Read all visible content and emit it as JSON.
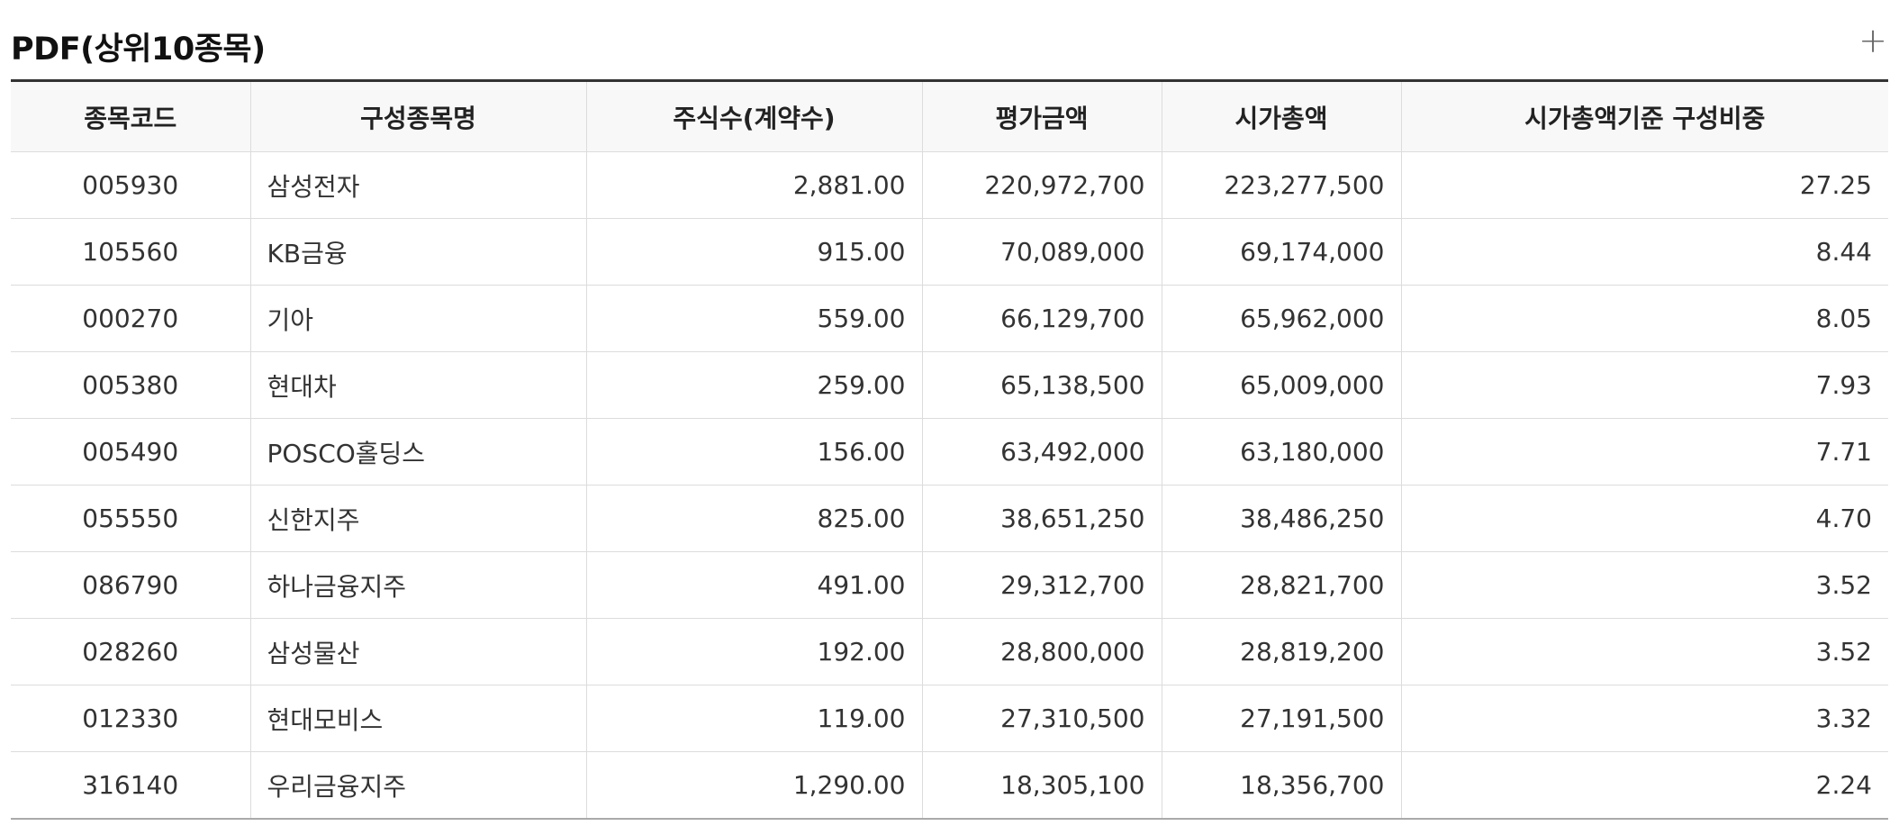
{
  "section": {
    "title": "PDF(상위10종목)",
    "expand_icon": "plus-icon",
    "expand_glyph": "+"
  },
  "table": {
    "headers": [
      "종목코드",
      "구성종목명",
      "주식수(계약수)",
      "평가금액",
      "시가총액",
      "시가총액기준 구성비중"
    ],
    "rows": [
      [
        "005930",
        "삼성전자",
        "2,881.00",
        "220,972,700",
        "223,277,500",
        "27.25"
      ],
      [
        "105560",
        "KB금융",
        "915.00",
        "70,089,000",
        "69,174,000",
        "8.44"
      ],
      [
        "000270",
        "기아",
        "559.00",
        "66,129,700",
        "65,962,000",
        "8.05"
      ],
      [
        "005380",
        "현대차",
        "259.00",
        "65,138,500",
        "65,009,000",
        "7.93"
      ],
      [
        "005490",
        "POSCO홀딩스",
        "156.00",
        "63,492,000",
        "63,180,000",
        "7.71"
      ],
      [
        "055550",
        "신한지주",
        "825.00",
        "38,651,250",
        "38,486,250",
        "4.70"
      ],
      [
        "086790",
        "하나금융지주",
        "491.00",
        "29,312,700",
        "28,821,700",
        "3.52"
      ],
      [
        "028260",
        "삼성물산",
        "192.00",
        "28,800,000",
        "28,819,200",
        "3.52"
      ],
      [
        "012330",
        "현대모비스",
        "119.00",
        "27,310,500",
        "27,191,500",
        "3.32"
      ],
      [
        "316140",
        "우리금융지주",
        "1,290.00",
        "18,305,100",
        "18,356,700",
        "2.24"
      ]
    ]
  },
  "colors": {
    "header_background": "#f8f8f8",
    "top_rule": "#333333",
    "grid_line": "#dcdcdc"
  }
}
